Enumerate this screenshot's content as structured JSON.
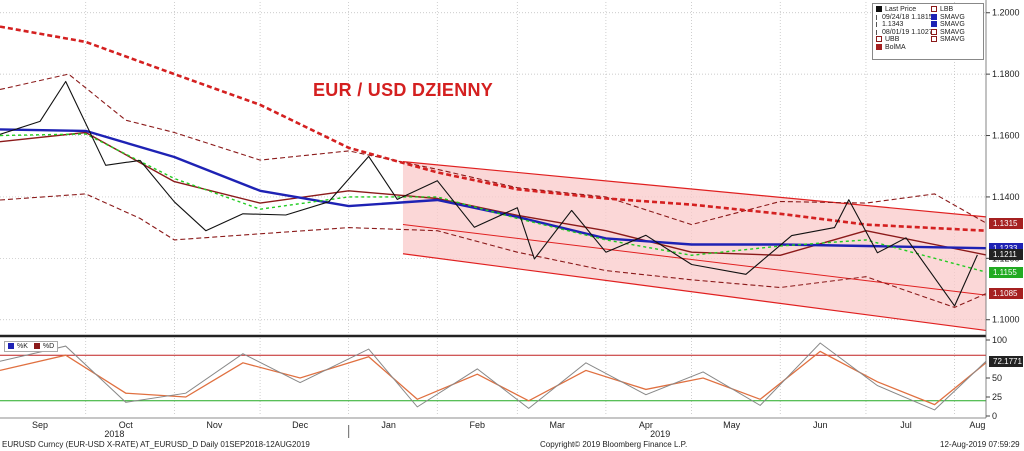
{
  "title": "EUR / USD DZIENNY",
  "colors": {
    "bollinger": "#8b1a1a",
    "sma_long": "#d42020",
    "sma_blue": "#1e22b4",
    "sma_green": "#22cc22",
    "channel_fill": "#f9c9c9",
    "channel_line": "#e02020",
    "osc_k": "#888888",
    "osc_d": "#e07040"
  },
  "legend": {
    "col1": [
      {
        "icon": "black-square",
        "text": "Last Price"
      },
      {
        "icon": "open-high-icon",
        "text": "09/24/18 1.1815"
      },
      {
        "icon": "cross-icon",
        "text": "1.1343"
      },
      {
        "icon": "low-icon",
        "text": "08/01/19 1.1027"
      },
      {
        "icon": "open-square",
        "text": "UBB"
      },
      {
        "icon": "red-square",
        "text": "BolMA"
      }
    ],
    "col2": [
      {
        "icon": "open-square",
        "text": "LBB"
      },
      {
        "icon": "blue-square",
        "text": "SMAVG"
      },
      {
        "icon": "blue-square",
        "text": "SMAVG"
      },
      {
        "icon": "open-square",
        "text": "SMAVG"
      },
      {
        "icon": "open-square",
        "text": "SMAVG"
      }
    ]
  },
  "price_axis": {
    "ticks": [
      "1.2000",
      "1.1800",
      "1.1600",
      "1.1400",
      "1.1200",
      "1.1000"
    ]
  },
  "price_labels": [
    {
      "text": "1.1315",
      "color": "#a52020"
    },
    {
      "text": "1.1233",
      "color": "#1e22b4"
    },
    {
      "text": "1.1211",
      "color": "#222222"
    },
    {
      "text": "1.1155",
      "color": "#22aa22"
    },
    {
      "text": "1.1085",
      "color": "#a52020"
    }
  ],
  "osc_axis": {
    "ticks": [
      "100",
      "50",
      "25",
      "0"
    ],
    "last_label": "72.1771"
  },
  "osc_legend": {
    "k": "%K",
    "d": "%D"
  },
  "x_axis": {
    "months": [
      "Sep",
      "Oct",
      "Nov",
      "Dec",
      "Jan",
      "Feb",
      "Mar",
      "Apr",
      "May",
      "Jun",
      "Jul",
      "Aug"
    ],
    "years": [
      "2018",
      "2019"
    ]
  },
  "footer": {
    "left": "EURUSD Curncy (EUR-USD X-RATE) AT_EURUSD_D  Daily 01SEP2018-12AUG2019",
    "center": "Copyright© 2019 Bloomberg Finance L.P.",
    "right": "12-Aug-2019 07:59:29"
  },
  "chart_data": {
    "type": "line",
    "title": "EUR / USD DZIENNY",
    "y_range": [
      1.096,
      1.2035
    ],
    "osc_range": [
      0,
      100
    ],
    "x_start": "2018-09-01",
    "x_end": "2019-08-12",
    "series": [
      {
        "name": "Last Price",
        "x": [
          "2018-09-01",
          "2018-09-15",
          "2018-09-24",
          "2018-10-08",
          "2018-10-20",
          "2018-11-01",
          "2018-11-12",
          "2018-11-25",
          "2018-12-10",
          "2018-12-25",
          "2019-01-08",
          "2019-01-18",
          "2019-02-01",
          "2019-02-14",
          "2019-03-01",
          "2019-03-07",
          "2019-03-20",
          "2019-04-01",
          "2019-04-15",
          "2019-05-01",
          "2019-05-20",
          "2019-06-05",
          "2019-06-20",
          "2019-06-25",
          "2019-07-05",
          "2019-07-15",
          "2019-08-01",
          "2019-08-09"
        ],
        "values": [
          1.1604,
          1.1646,
          1.1776,
          1.1503,
          1.1519,
          1.1384,
          1.129,
          1.1345,
          1.1341,
          1.1384,
          1.1532,
          1.1392,
          1.1453,
          1.1301,
          1.1365,
          1.1198,
          1.1356,
          1.122,
          1.1275,
          1.118,
          1.1148,
          1.1274,
          1.13,
          1.1391,
          1.1218,
          1.1267,
          1.1045,
          1.1211
        ]
      },
      {
        "name": "SMAVG",
        "x": [
          "2018-09-01",
          "2018-10-01",
          "2018-11-01",
          "2018-12-01",
          "2019-01-01",
          "2019-02-01",
          "2019-03-01",
          "2019-04-01",
          "2019-05-01",
          "2019-06-01",
          "2019-07-01",
          "2019-08-12"
        ],
        "values": [
          1.1955,
          1.1905,
          1.18,
          1.17,
          1.156,
          1.148,
          1.1425,
          1.1395,
          1.1375,
          1.1345,
          1.131,
          1.129
        ]
      },
      {
        "name": "SMAVG",
        "x": [
          "2018-09-01",
          "2018-10-01",
          "2018-11-01",
          "2018-12-01",
          "2019-01-01",
          "2019-02-01",
          "2019-03-01",
          "2019-04-01",
          "2019-05-01",
          "2019-06-01",
          "2019-07-01",
          "2019-08-12"
        ],
        "values": [
          1.162,
          1.1615,
          1.153,
          1.142,
          1.137,
          1.139,
          1.1335,
          1.1265,
          1.1245,
          1.1245,
          1.124,
          1.1233
        ]
      },
      {
        "name": "SMAVG",
        "x": [
          "2018-09-01",
          "2018-10-01",
          "2018-11-01",
          "2018-12-01",
          "2019-01-01",
          "2019-02-01",
          "2019-03-01",
          "2019-04-01",
          "2019-05-01",
          "2019-06-01",
          "2019-07-01",
          "2019-08-12"
        ],
        "values": [
          1.16,
          1.1605,
          1.146,
          1.136,
          1.14,
          1.14,
          1.133,
          1.126,
          1.121,
          1.124,
          1.126,
          1.1155
        ]
      },
      {
        "name": "BolMA",
        "x": [
          "2018-09-01",
          "2018-10-01",
          "2018-11-01",
          "2018-12-01",
          "2019-01-01",
          "2019-02-01",
          "2019-03-01",
          "2019-04-01",
          "2019-05-01",
          "2019-06-01",
          "2019-07-01",
          "2019-08-12"
        ],
        "values": [
          1.158,
          1.161,
          1.145,
          1.138,
          1.142,
          1.1395,
          1.134,
          1.129,
          1.122,
          1.121,
          1.129,
          1.1211
        ]
      },
      {
        "name": "UBB",
        "x": [
          "2018-09-01",
          "2018-09-25",
          "2018-10-15",
          "2018-11-01",
          "2018-12-01",
          "2019-01-01",
          "2019-02-01",
          "2019-03-01",
          "2019-04-01",
          "2019-05-01",
          "2019-06-01",
          "2019-07-01",
          "2019-07-25",
          "2019-08-12"
        ],
        "values": [
          1.175,
          1.18,
          1.165,
          1.161,
          1.152,
          1.155,
          1.149,
          1.143,
          1.14,
          1.131,
          1.1385,
          1.138,
          1.141,
          1.1315
        ]
      },
      {
        "name": "LBB",
        "x": [
          "2018-09-01",
          "2018-10-01",
          "2018-10-20",
          "2018-11-01",
          "2018-12-01",
          "2019-01-01",
          "2019-02-01",
          "2019-03-01",
          "2019-04-01",
          "2019-05-01",
          "2019-06-01",
          "2019-07-01",
          "2019-08-01",
          "2019-08-12"
        ],
        "values": [
          1.139,
          1.141,
          1.133,
          1.126,
          1.128,
          1.13,
          1.129,
          1.122,
          1.116,
          1.113,
          1.1105,
          1.114,
          1.104,
          1.1085
        ]
      }
    ],
    "channel": {
      "start": "2019-01-20",
      "end": "2019-08-12",
      "upper": [
        1.1515,
        1.1335
      ],
      "lower": [
        1.1215,
        1.0965
      ],
      "mid_line": [
        1.131,
        1.108
      ]
    },
    "oscillator": {
      "x": [
        "2018-09-01",
        "2018-09-24",
        "2018-10-15",
        "2018-11-05",
        "2018-11-25",
        "2018-12-15",
        "2019-01-08",
        "2019-01-25",
        "2019-02-15",
        "2019-03-05",
        "2019-03-25",
        "2019-04-15",
        "2019-05-05",
        "2019-05-25",
        "2019-06-15",
        "2019-07-05",
        "2019-07-25",
        "2019-08-12"
      ],
      "k": [
        72,
        92,
        18,
        30,
        82,
        44,
        88,
        12,
        62,
        10,
        70,
        28,
        58,
        14,
        96,
        40,
        8,
        72
      ],
      "d": [
        60,
        80,
        30,
        25,
        70,
        50,
        78,
        22,
        55,
        20,
        60,
        35,
        50,
        22,
        85,
        45,
        15,
        70
      ],
      "levels": [
        80,
        20
      ]
    }
  }
}
